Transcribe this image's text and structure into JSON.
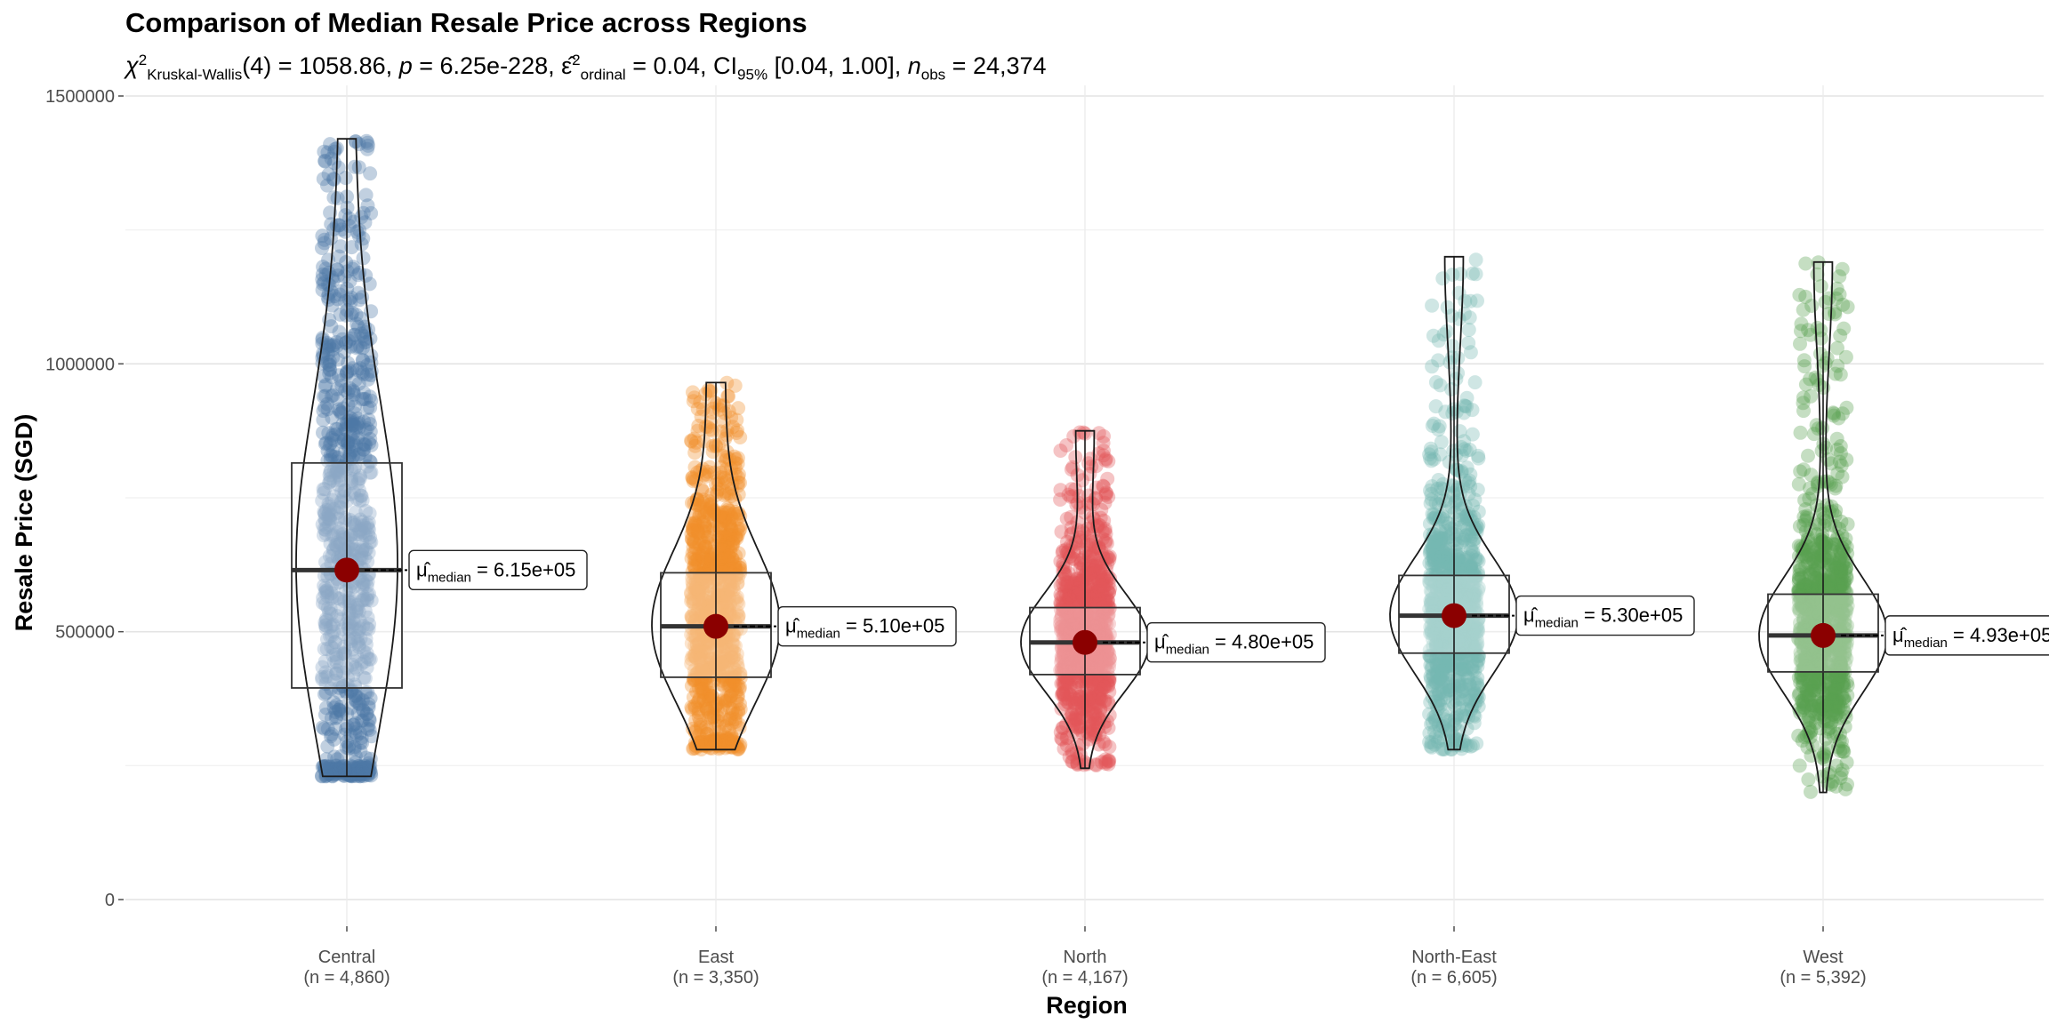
{
  "chart_data": {
    "type": "violin-box-scatter",
    "title": "Comparison of Median Resale Price across Regions",
    "subtitle": {
      "stat_symbol": "χ",
      "stat_sup": "2",
      "stat_sub": "Kruskal-Wallis",
      "df": "(4)",
      "statistic": "1058.86",
      "p_label": "p",
      "p_value": "6.25e-228",
      "effect_symbol": "ε̂",
      "effect_sup": "2",
      "effect_sub": "ordinal",
      "effect_value": "0.04",
      "ci_label": "CI",
      "ci_sub": "95%",
      "ci_value": "[0.04, 1.00]",
      "n_label": "n",
      "n_sub": "obs",
      "n_value": "24,374"
    },
    "xlabel": "Region",
    "ylabel": "Resale Price (SGD)",
    "ylim": [
      -50000,
      1550000
    ],
    "yticks": [
      0,
      500000,
      1000000,
      1500000
    ],
    "ytick_labels": [
      "0",
      "500000",
      "1000000",
      "1500000"
    ],
    "grid": true,
    "categories": [
      {
        "name": "Central",
        "n_label": "(n = 4,860)",
        "color": "#4E79A7",
        "min": 230000,
        "q1": 395000,
        "median": 615000,
        "q3": 815000,
        "max": 1420000,
        "median_label": "6.15e+05"
      },
      {
        "name": "East",
        "n_label": "(n = 3,350)",
        "color": "#F28E2B",
        "min": 280000,
        "q1": 415000,
        "median": 510000,
        "q3": 610000,
        "max": 965000,
        "median_label": "5.10e+05"
      },
      {
        "name": "North",
        "n_label": "(n = 4,167)",
        "color": "#E15759",
        "min": 245000,
        "q1": 420000,
        "median": 480000,
        "q3": 545000,
        "max": 875000,
        "median_label": "4.80e+05"
      },
      {
        "name": "North-East",
        "n_label": "(n = 6,605)",
        "color": "#76B7B2",
        "min": 280000,
        "q1": 460000,
        "median": 530000,
        "q3": 605000,
        "max": 1200000,
        "median_label": "5.30e+05"
      },
      {
        "name": "West",
        "n_label": "(n = 5,392)",
        "color": "#59A14F",
        "min": 200000,
        "q1": 425000,
        "median": 493000,
        "q3": 570000,
        "max": 1190000,
        "median_label": "4.93e+05"
      }
    ],
    "median_label_prefix": "μ̂",
    "median_label_sub": "median",
    "median_point_color": "#8B0000"
  }
}
